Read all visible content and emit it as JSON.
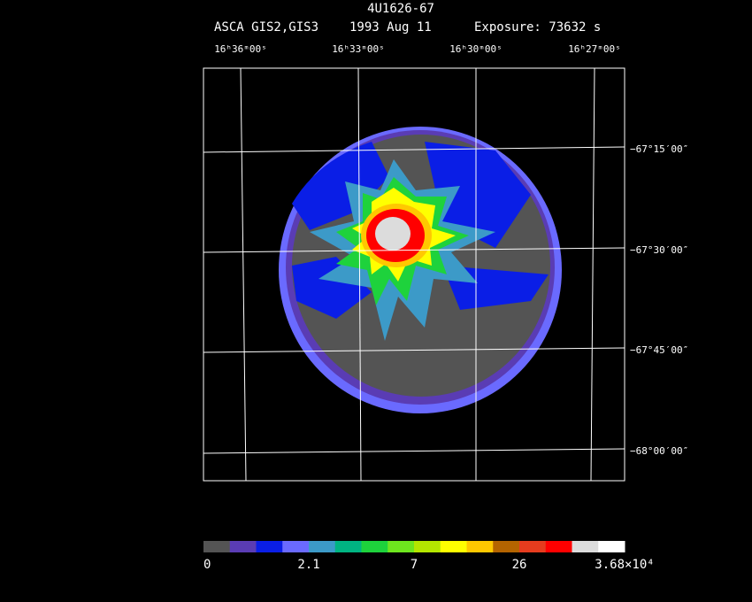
{
  "header": {
    "title": "4U1626-67",
    "instrument": "ASCA GIS2,GIS3",
    "date": "1993 Aug 11",
    "exposure": "Exposure: 73632 s"
  },
  "ra_labels": [
    "16ʰ36ᵐ00ˢ",
    "16ʰ33ᵐ00ˢ",
    "16ʰ30ᵐ00ˢ",
    "16ʰ27ᵐ00ˢ"
  ],
  "dec_labels": [
    "−67°15′00″",
    "−67°30′00″",
    "−67°45′00″",
    "−68°00′00″"
  ],
  "colorbar": {
    "colors": [
      "#545454",
      "#5a3cb4",
      "#0a1ee6",
      "#6a6aff",
      "#3c9ac8",
      "#00b482",
      "#1ed23c",
      "#6ee61e",
      "#b4e600",
      "#ffff00",
      "#ffc800",
      "#b46400",
      "#e63c1e",
      "#ff0000",
      "#dcdcdc",
      "#ffffff"
    ],
    "labels": [
      "0",
      "2.1",
      "7",
      "26",
      "3.68×10⁴"
    ]
  }
}
